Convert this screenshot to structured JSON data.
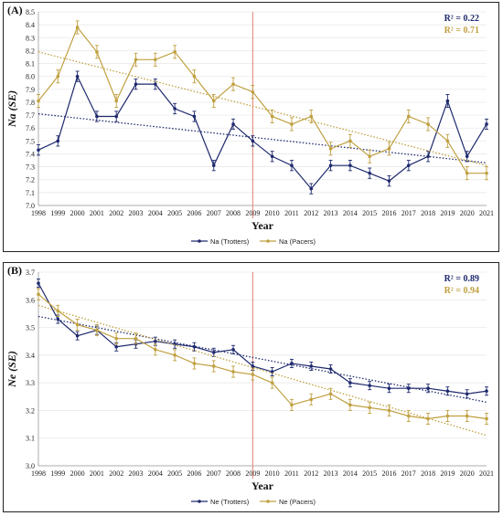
{
  "colors": {
    "trotters": "#1f2a6e",
    "pacers": "#c0a040",
    "vline": "#e08070",
    "grid": "#e6e6e6"
  },
  "chart_data": [
    {
      "type": "line",
      "panel_label": "(A)",
      "xlabel": "Year",
      "ylabel": "Na (SE)",
      "x": [
        1998,
        1999,
        2000,
        2001,
        2002,
        2003,
        2004,
        2005,
        2006,
        2007,
        2008,
        2009,
        2010,
        2011,
        2012,
        2013,
        2014,
        2015,
        2016,
        2017,
        2018,
        2019,
        2020,
        2021
      ],
      "ylim": [
        7.0,
        8.5
      ],
      "yticks": [
        "7.0",
        "7.1",
        "7.2",
        "7.3",
        "7.4",
        "7.5",
        "7.6",
        "7.7",
        "7.8",
        "7.9",
        "8.0",
        "8.1",
        "8.2",
        "8.3",
        "8.4",
        "8.5"
      ],
      "vline_x": 2009,
      "grid": true,
      "legend_position": "bottom-center",
      "series": [
        {
          "name": "Na (Trotters)",
          "color_key": "trotters",
          "r2": "R² = 0.22",
          "values": [
            7.43,
            7.5,
            8.0,
            7.69,
            7.69,
            7.94,
            7.94,
            7.75,
            7.69,
            7.31,
            7.63,
            7.5,
            7.38,
            7.31,
            7.13,
            7.31,
            7.31,
            7.25,
            7.19,
            7.31,
            7.38,
            7.81,
            7.38,
            7.63
          ],
          "errors": [
            0.04,
            0.04,
            0.04,
            0.04,
            0.04,
            0.04,
            0.04,
            0.04,
            0.04,
            0.04,
            0.04,
            0.04,
            0.04,
            0.04,
            0.04,
            0.04,
            0.04,
            0.04,
            0.04,
            0.04,
            0.04,
            0.05,
            0.04,
            0.04
          ],
          "trend": [
            7.71,
            7.33
          ]
        },
        {
          "name": "Na (Pacers)",
          "color_key": "pacers",
          "r2": "R² = 0.71",
          "values": [
            7.81,
            8.0,
            8.38,
            8.19,
            7.81,
            8.13,
            8.13,
            8.19,
            8.0,
            7.81,
            7.94,
            7.88,
            7.69,
            7.63,
            7.69,
            7.44,
            7.5,
            7.38,
            7.44,
            7.69,
            7.63,
            7.5,
            7.25,
            7.25
          ],
          "errors": [
            0.05,
            0.05,
            0.05,
            0.05,
            0.05,
            0.05,
            0.05,
            0.05,
            0.05,
            0.05,
            0.05,
            0.05,
            0.05,
            0.05,
            0.05,
            0.05,
            0.05,
            0.05,
            0.05,
            0.05,
            0.05,
            0.05,
            0.05,
            0.05
          ],
          "trend": [
            8.19,
            7.31
          ]
        }
      ]
    },
    {
      "type": "line",
      "panel_label": "(B)",
      "xlabel": "Year",
      "ylabel": "Ne (SE)",
      "x": [
        1998,
        1999,
        2000,
        2001,
        2002,
        2003,
        2004,
        2005,
        2006,
        2007,
        2008,
        2009,
        2010,
        2011,
        2012,
        2013,
        2014,
        2015,
        2016,
        2017,
        2018,
        2019,
        2020,
        2021
      ],
      "ylim": [
        3.0,
        3.7
      ],
      "yticks": [
        "3.0",
        "3.1",
        "3.2",
        "3.3",
        "3.4",
        "3.5",
        "3.6",
        "3.7"
      ],
      "vline_x": 2009,
      "grid": true,
      "legend_position": "bottom-center",
      "series": [
        {
          "name": "Ne (Trotters)",
          "color_key": "trotters",
          "r2": "R² = 0.89",
          "values": [
            3.66,
            3.53,
            3.47,
            3.49,
            3.43,
            3.44,
            3.45,
            3.44,
            3.43,
            3.41,
            3.42,
            3.36,
            3.34,
            3.37,
            3.36,
            3.35,
            3.3,
            3.29,
            3.28,
            3.28,
            3.28,
            3.27,
            3.26,
            3.27
          ],
          "errors": [
            0.015,
            0.015,
            0.015,
            0.015,
            0.015,
            0.015,
            0.015,
            0.015,
            0.015,
            0.015,
            0.015,
            0.015,
            0.015,
            0.015,
            0.015,
            0.015,
            0.015,
            0.015,
            0.015,
            0.015,
            0.015,
            0.015,
            0.015,
            0.015
          ],
          "trend": [
            3.54,
            3.23
          ]
        },
        {
          "name": "Ne (Pacers)",
          "color_key": "pacers",
          "r2": "R² = 0.94",
          "values": [
            3.62,
            3.56,
            3.51,
            3.49,
            3.46,
            3.46,
            3.42,
            3.4,
            3.37,
            3.36,
            3.34,
            3.33,
            3.3,
            3.22,
            3.24,
            3.26,
            3.22,
            3.21,
            3.2,
            3.18,
            3.17,
            3.18,
            3.18,
            3.17
          ],
          "errors": [
            0.02,
            0.02,
            0.02,
            0.02,
            0.02,
            0.02,
            0.02,
            0.02,
            0.02,
            0.02,
            0.02,
            0.02,
            0.02,
            0.02,
            0.02,
            0.02,
            0.02,
            0.02,
            0.02,
            0.02,
            0.02,
            0.02,
            0.02,
            0.02
          ],
          "trend": [
            3.58,
            3.11
          ]
        }
      ]
    }
  ]
}
